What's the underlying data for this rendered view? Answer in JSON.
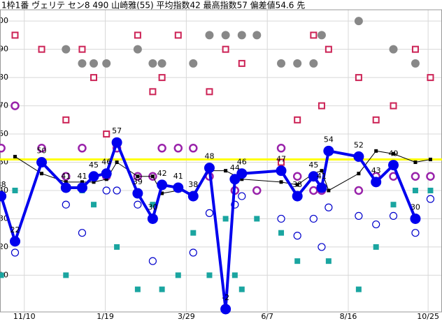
{
  "chart_data": {
    "type": "line",
    "title": "1枠1番 ヴェリテ セン8 490 山崎雅(55) 平均指数42 最高指数57 偏差値54.6 先",
    "xlim": [
      -21,
      361
    ],
    "xticks": [
      {
        "value": 0,
        "label": "11/10"
      },
      {
        "value": 70,
        "label": "1/19"
      },
      {
        "value": 140,
        "label": "3/29"
      },
      {
        "value": 210,
        "label": "6/7"
      },
      {
        "value": 280,
        "label": "8/16"
      },
      {
        "value": 349,
        "label": "10/25"
      }
    ],
    "ylim": [
      -3,
      104
    ],
    "yticks": [
      10,
      20,
      30,
      40,
      50,
      60,
      70,
      80,
      90,
      100
    ],
    "grid": true,
    "reference_line": {
      "value": 51,
      "color": "#ffff00"
    },
    "series": [
      {
        "marker": "small-square",
        "color": "#1aa5a0",
        "x": [
          -20,
          -8,
          36,
          50,
          60,
          71,
          80,
          98,
          111,
          119,
          133,
          146,
          160,
          174,
          182,
          188,
          201,
          222,
          236,
          250,
          257,
          263,
          289,
          304,
          319,
          338,
          351
        ],
        "values": [
          10,
          40,
          10,
          40,
          35,
          40,
          20,
          5,
          35,
          5,
          10,
          25,
          10,
          30,
          10,
          5,
          30,
          25,
          15,
          30,
          20,
          15,
          5,
          20,
          35,
          40,
          40
        ]
      },
      {
        "marker": "gray-circle",
        "color": "#888888",
        "x": [
          36,
          50,
          60,
          71,
          98,
          111,
          119,
          146,
          160,
          174,
          188,
          201,
          222,
          236,
          250,
          257,
          289,
          319,
          338
        ],
        "values": [
          90,
          85,
          85,
          85,
          90,
          85,
          85,
          85,
          95,
          95,
          95,
          95,
          85,
          85,
          85,
          95,
          100,
          90,
          85
        ]
      },
      {
        "marker": "open-square",
        "color": "#cc2255",
        "x": [
          -8,
          15,
          36,
          50,
          60,
          71,
          98,
          111,
          119,
          133,
          160,
          174,
          188,
          222,
          236,
          250,
          257,
          263,
          289,
          304,
          319,
          338,
          351
        ],
        "values": [
          95,
          90,
          65,
          90,
          80,
          60,
          95,
          75,
          80,
          95,
          75,
          90,
          85,
          50,
          65,
          95,
          70,
          90,
          80,
          65,
          70,
          90,
          80
        ]
      },
      {
        "marker": "ring",
        "color": "#9922aa",
        "x": [
          -20,
          -8,
          15,
          36,
          50,
          60,
          71,
          80,
          98,
          111,
          119,
          133,
          146,
          160,
          182,
          201,
          222,
          236,
          250,
          257,
          289,
          304,
          319,
          338,
          351
        ],
        "values": [
          55,
          70,
          55,
          45,
          55,
          45,
          45,
          55,
          45,
          45,
          55,
          55,
          55,
          45,
          40,
          40,
          55,
          45,
          40,
          40,
          40,
          45,
          45,
          45,
          45
        ]
      },
      {
        "marker": "hollow-circle",
        "color": "#0000cc",
        "x": [
          -8,
          36,
          50,
          71,
          80,
          98,
          111,
          146,
          160,
          182,
          188,
          222,
          236,
          250,
          257,
          263,
          289,
          304,
          319,
          338,
          351
        ],
        "values": [
          18,
          35,
          25,
          40,
          40,
          35,
          15,
          18,
          32,
          35,
          38,
          30,
          24,
          30,
          20,
          34,
          31,
          28,
          31,
          25,
          37
        ]
      },
      {
        "marker": "line-square",
        "color": "#000000",
        "x": [
          -8,
          15,
          36,
          50,
          60,
          71,
          80,
          98,
          111,
          119,
          133,
          146,
          160,
          174,
          188,
          222,
          236,
          250,
          257,
          263,
          289,
          304,
          319,
          338,
          351
        ],
        "values": [
          52,
          46,
          43,
          43,
          43,
          44,
          50,
          45,
          45,
          39,
          40,
          39,
          47,
          47,
          44,
          43,
          42,
          46,
          47,
          40,
          46,
          54,
          53,
          50,
          51
        ]
      },
      {
        "marker": "line-dot",
        "color": "#0000ee",
        "x": [
          -20,
          -8,
          15,
          36,
          50,
          60,
          71,
          80,
          98,
          111,
          119,
          133,
          146,
          160,
          174,
          182,
          188,
          222,
          236,
          250,
          257,
          263,
          289,
          304,
          319,
          338
        ],
        "values": [
          38,
          22,
          50,
          41,
          41,
          45,
          46,
          57,
          39,
          30,
          42,
          41,
          38,
          48,
          -2,
          44,
          46,
          47,
          38,
          45,
          41,
          54,
          52,
          43,
          49,
          30
        ]
      }
    ]
  }
}
